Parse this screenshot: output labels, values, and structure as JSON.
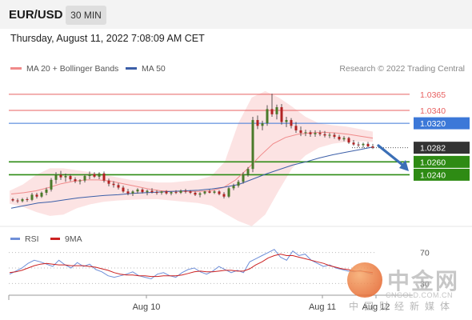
{
  "header": {
    "symbol": "EUR/USD",
    "timeframe": "30 MIN",
    "datetime": "Thursday, August 11, 2022 7:08:09 AM CET"
  },
  "legend": {
    "ma20_label": "MA 20 + Bollinger Bands",
    "ma50_label": "MA 50",
    "credit": "Research © 2022 Trading Central"
  },
  "rsi_legend": {
    "rsi_label": "RSI",
    "ma9_label": "9MA"
  },
  "colors": {
    "ma20": "#f08a8a",
    "ma50": "#3c5fa8",
    "bollinger_fill": "#fbdada",
    "resistance": "#e86060",
    "support": "#2e8b14",
    "pivot": "#3c78d8",
    "current": "#333333",
    "candle_up": "#4a7a2a",
    "candle_down": "#b22222",
    "arrow": "#3b6fb6",
    "rsi": "#6f8fd8",
    "rsi_ma": "#cc2222"
  },
  "chart_data": {
    "type": "candlestick",
    "symbol": "EUR/USD",
    "timeframe": "30 MIN",
    "x_tick_labels": [
      "Aug 10",
      "Aug 11",
      "Aug 12"
    ],
    "ylim": [
      1.0151,
      1.0386
    ],
    "levels": [
      {
        "value": 1.0365,
        "label": "1.0365",
        "kind": "resistance"
      },
      {
        "value": 1.034,
        "label": "1.0340",
        "kind": "resistance"
      },
      {
        "value": 1.032,
        "label": "1.0320",
        "kind": "pivot"
      },
      {
        "value": 1.0282,
        "label": "1.0282",
        "kind": "current"
      },
      {
        "value": 1.026,
        "label": "1.0260",
        "kind": "support"
      },
      {
        "value": 1.024,
        "label": "1.0240",
        "kind": "support"
      }
    ],
    "candles": [
      [
        1.0202,
        1.0204,
        1.0198,
        1.02
      ],
      [
        1.02,
        1.0203,
        1.0196,
        1.0199
      ],
      [
        1.0199,
        1.0204,
        1.0197,
        1.0202
      ],
      [
        1.0202,
        1.0205,
        1.0198,
        1.0201
      ],
      [
        1.0201,
        1.0212,
        1.0199,
        1.0209
      ],
      [
        1.0209,
        1.0212,
        1.0203,
        1.0206
      ],
      [
        1.0206,
        1.0214,
        1.0204,
        1.0212
      ],
      [
        1.0212,
        1.022,
        1.0208,
        1.0217
      ],
      [
        1.0217,
        1.0235,
        1.0214,
        1.0232
      ],
      [
        1.0232,
        1.0244,
        1.0226,
        1.024
      ],
      [
        1.024,
        1.0246,
        1.0232,
        1.0236
      ],
      [
        1.0236,
        1.0242,
        1.0229,
        1.0238
      ],
      [
        1.0238,
        1.0241,
        1.023,
        1.0233
      ],
      [
        1.0233,
        1.0236,
        1.0227,
        1.023
      ],
      [
        1.023,
        1.0233,
        1.0225,
        1.0231
      ],
      [
        1.0231,
        1.024,
        1.0228,
        1.0238
      ],
      [
        1.0238,
        1.0245,
        1.0233,
        1.0241
      ],
      [
        1.0241,
        1.0244,
        1.0235,
        1.0237
      ],
      [
        1.0237,
        1.0244,
        1.0233,
        1.0242
      ],
      [
        1.0242,
        1.0245,
        1.0228,
        1.0231
      ],
      [
        1.0231,
        1.0234,
        1.0222,
        1.0226
      ],
      [
        1.0226,
        1.023,
        1.022,
        1.0224
      ],
      [
        1.0224,
        1.0227,
        1.0217,
        1.022
      ],
      [
        1.022,
        1.0223,
        1.0212,
        1.0214
      ],
      [
        1.0214,
        1.0218,
        1.0208,
        1.0211
      ],
      [
        1.0211,
        1.0216,
        1.0207,
        1.0214
      ],
      [
        1.0214,
        1.0219,
        1.0211,
        1.0217
      ],
      [
        1.0217,
        1.0219,
        1.0211,
        1.0213
      ],
      [
        1.0213,
        1.0217,
        1.0208,
        1.0215
      ],
      [
        1.0215,
        1.0219,
        1.0211,
        1.0213
      ],
      [
        1.0213,
        1.0216,
        1.0209,
        1.0212
      ],
      [
        1.0212,
        1.0215,
        1.0209,
        1.0214
      ],
      [
        1.0214,
        1.0216,
        1.0209,
        1.0211
      ],
      [
        1.0211,
        1.0214,
        1.0208,
        1.0213
      ],
      [
        1.0213,
        1.0216,
        1.021,
        1.0212
      ],
      [
        1.0212,
        1.0217,
        1.021,
        1.0215
      ],
      [
        1.0215,
        1.0218,
        1.0211,
        1.0214
      ],
      [
        1.0214,
        1.0216,
        1.021,
        1.0212
      ],
      [
        1.0212,
        1.0214,
        1.0207,
        1.0209
      ],
      [
        1.0209,
        1.0213,
        1.0205,
        1.0211
      ],
      [
        1.0211,
        1.0215,
        1.0209,
        1.0214
      ],
      [
        1.0214,
        1.0217,
        1.0211,
        1.0212
      ],
      [
        1.0212,
        1.0216,
        1.021,
        1.0214
      ],
      [
        1.0214,
        1.0216,
        1.0208,
        1.021
      ],
      [
        1.021,
        1.0213,
        1.0203,
        1.0206
      ],
      [
        1.0206,
        1.0221,
        1.0204,
        1.0219
      ],
      [
        1.0219,
        1.0226,
        1.0216,
        1.0223
      ],
      [
        1.0223,
        1.0232,
        1.022,
        1.0229
      ],
      [
        1.0229,
        1.0244,
        1.0226,
        1.0241
      ],
      [
        1.0241,
        1.0252,
        1.0237,
        1.0249
      ],
      [
        1.0249,
        1.033,
        1.0244,
        1.0325
      ],
      [
        1.0325,
        1.0332,
        1.0311,
        1.0316
      ],
      [
        1.0316,
        1.0324,
        1.0309,
        1.032
      ],
      [
        1.032,
        1.0348,
        1.0316,
        1.0342
      ],
      [
        1.0342,
        1.0366,
        1.033,
        1.0334
      ],
      [
        1.0334,
        1.0349,
        1.0326,
        1.0345
      ],
      [
        1.0345,
        1.035,
        1.0318,
        1.0322
      ],
      [
        1.0322,
        1.033,
        1.0314,
        1.0325
      ],
      [
        1.0325,
        1.0328,
        1.0312,
        1.0316
      ],
      [
        1.0316,
        1.0322,
        1.0305,
        1.0309
      ],
      [
        1.0309,
        1.0315,
        1.03,
        1.0305
      ],
      [
        1.0305,
        1.031,
        1.03,
        1.0306
      ],
      [
        1.0306,
        1.0309,
        1.0299,
        1.0303
      ],
      [
        1.0303,
        1.0309,
        1.0299,
        1.0305
      ],
      [
        1.0305,
        1.0309,
        1.03,
        1.0303
      ],
      [
        1.0303,
        1.0308,
        1.0298,
        1.0301
      ],
      [
        1.0301,
        1.0305,
        1.0297,
        1.0302
      ],
      [
        1.0302,
        1.0305,
        1.0296,
        1.0299
      ],
      [
        1.0299,
        1.0302,
        1.0293,
        1.0295
      ],
      [
        1.0295,
        1.03,
        1.0292,
        1.0297
      ],
      [
        1.0297,
        1.0299,
        1.0288,
        1.029
      ],
      [
        1.029,
        1.0294,
        1.0285,
        1.0287
      ],
      [
        1.0287,
        1.0291,
        1.0283,
        1.0286
      ],
      [
        1.0286,
        1.029,
        1.0282,
        1.0288
      ],
      [
        1.0288,
        1.0291,
        1.0283,
        1.0284
      ],
      [
        1.0284,
        1.0288,
        1.028,
        1.0282
      ]
    ],
    "ma20": [
      1.021,
      1.0212,
      1.0215,
      1.022,
      1.0226,
      1.023,
      1.0232,
      1.0232,
      1.023,
      1.0226,
      1.0222,
      1.0218,
      1.0215,
      1.0214,
      1.0214,
      1.0214,
      1.0215,
      1.022,
      1.0232,
      1.025,
      1.027,
      1.0288,
      1.0298,
      1.0303,
      1.0305,
      1.0306,
      1.0305,
      1.0303,
      1.03,
      1.0297
    ],
    "ma50": [
      1.0188,
      1.0192,
      1.0196,
      1.0198,
      1.0201,
      1.0204,
      1.0206,
      1.0208,
      1.0209,
      1.0211,
      1.0212,
      1.0213,
      1.0214,
      1.0215,
      1.0216,
      1.0218,
      1.0221,
      1.0225,
      1.0233,
      1.0241,
      1.0248,
      1.0255,
      1.026,
      1.0266,
      1.0271,
      1.0275,
      1.0279,
      1.0283
    ],
    "bb_upper": [
      1.0215,
      1.0225,
      1.024,
      1.025,
      1.025,
      1.0247,
      1.0244,
      1.024,
      1.0236,
      1.0232,
      1.023,
      1.0228,
      1.0228,
      1.023,
      1.0232,
      1.0238,
      1.026,
      1.032,
      1.036,
      1.037,
      1.036,
      1.0346,
      1.033,
      1.032,
      1.0317,
      1.0315,
      1.0311,
      1.0307
    ],
    "bb_lower": [
      1.0195,
      1.019,
      1.0182,
      1.0176,
      1.0178,
      1.0188,
      1.0194,
      1.0198,
      1.02,
      1.0201,
      1.0202,
      1.0202,
      1.02,
      1.0198,
      1.0196,
      1.0192,
      1.018,
      1.0168,
      1.016,
      1.0178,
      1.0215,
      1.025,
      1.027,
      1.0282,
      1.0288,
      1.0291,
      1.0292,
      1.0291
    ],
    "rsi": {
      "ylim": [
        20,
        80
      ],
      "level_labels": [
        "70",
        "30"
      ],
      "levels": [
        70,
        30
      ],
      "rsi": [
        42,
        46,
        50,
        56,
        60,
        58,
        55,
        52,
        60,
        54,
        50,
        57,
        52,
        55,
        48,
        45,
        40,
        38,
        40,
        42,
        45,
        40,
        38,
        36,
        42,
        44,
        40,
        38,
        44,
        48,
        50,
        45,
        42,
        46,
        52,
        48,
        44,
        47,
        44,
        58,
        62,
        66,
        70,
        74,
        64,
        60,
        72,
        66,
        68,
        60,
        56,
        52,
        54,
        50,
        48,
        46,
        45,
        47,
        44,
        42
      ],
      "ma9": [
        44,
        45,
        47,
        50,
        53,
        55,
        56,
        55,
        54,
        54,
        53,
        53,
        53,
        52,
        51,
        49,
        47,
        44,
        42,
        41,
        41,
        40,
        40,
        39,
        39,
        40,
        40,
        40,
        41,
        43,
        45,
        46,
        45,
        45,
        46,
        47,
        47,
        46,
        46,
        49,
        54,
        58,
        63,
        66,
        68,
        66,
        66,
        64,
        62,
        60,
        58,
        56,
        53,
        51,
        49,
        48,
        46,
        46,
        45,
        44
      ]
    }
  }
}
